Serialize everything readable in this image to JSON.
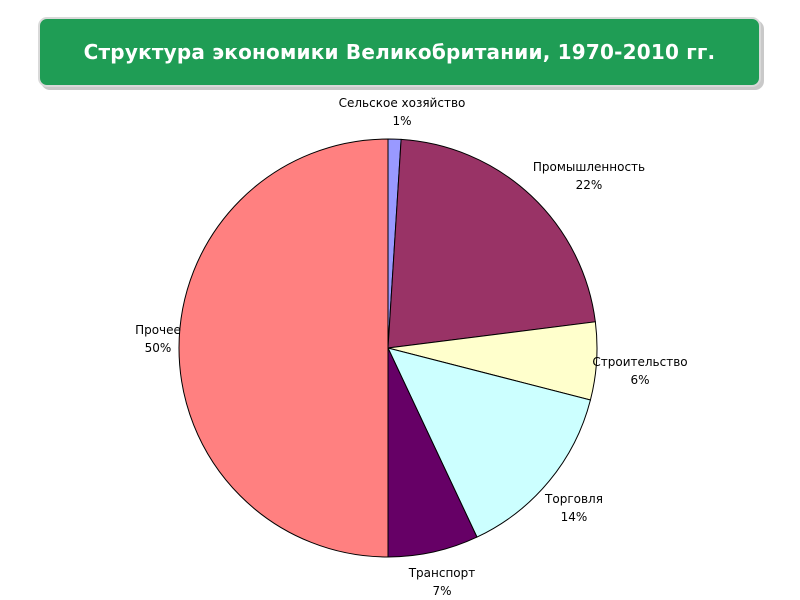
{
  "title": "Структура экономики Великобритании, 1970-2010 гг.",
  "chart_data": {
    "type": "pie",
    "title": "Структура экономики Великобритании, 1970-2010 гг.",
    "value_unit": "%",
    "legend": "none",
    "slices": [
      {
        "name": "Сельское хозяйство",
        "value": 1,
        "label": "1%",
        "color": "#9999ff"
      },
      {
        "name": "Промышленность",
        "value": 22,
        "label": "22%",
        "color": "#993366"
      },
      {
        "name": "Строительство",
        "value": 6,
        "label": "6%",
        "color": "#ffffcc"
      },
      {
        "name": "Торговля",
        "value": 14,
        "label": "14%",
        "color": "#ccffff"
      },
      {
        "name": "Транспорт",
        "value": 7,
        "label": "7%",
        "color": "#660066"
      },
      {
        "name": "Прочее",
        "value": 50,
        "label": "50%",
        "color": "#ff8080"
      }
    ]
  }
}
